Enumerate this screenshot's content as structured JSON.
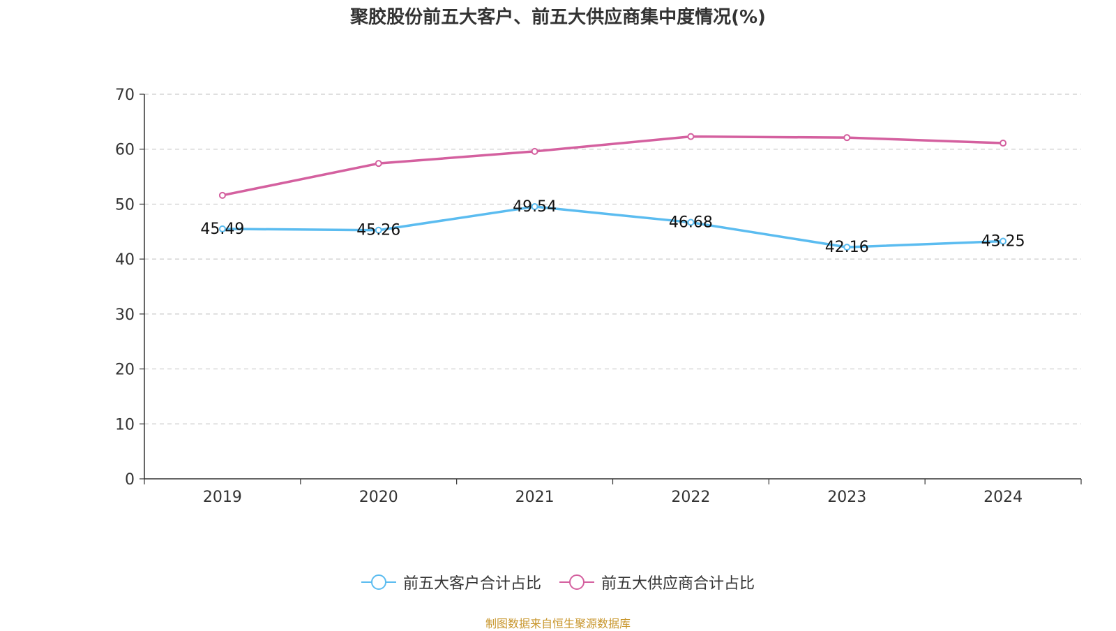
{
  "title": "聚胶股份前五大客户、前五大供应商集中度情况(%)",
  "source_note": "制图数据来自恒生聚源数据库",
  "chart_data": {
    "type": "line",
    "title": "聚胶股份前五大客户、前五大供应商集中度情况(%)",
    "categories": [
      "2019",
      "2020",
      "2021",
      "2022",
      "2023",
      "2024"
    ],
    "ylim": [
      0,
      70
    ],
    "yticks": [
      0,
      10,
      20,
      30,
      40,
      50,
      60,
      70
    ],
    "grid": true,
    "legend_position": "bottom",
    "series": [
      {
        "name": "前五大客户合计占比",
        "color": "#5bbcf0",
        "values": [
          45.49,
          45.26,
          49.54,
          46.68,
          42.16,
          43.25
        ],
        "value_labels": [
          "45.49",
          "45.26",
          "49.54",
          "46.68",
          "42.16",
          "43.25"
        ]
      },
      {
        "name": "前五大供应商合计占比",
        "color": "#d4609f",
        "values": [
          51.6,
          57.4,
          59.6,
          62.3,
          62.1,
          61.1
        ]
      }
    ]
  }
}
